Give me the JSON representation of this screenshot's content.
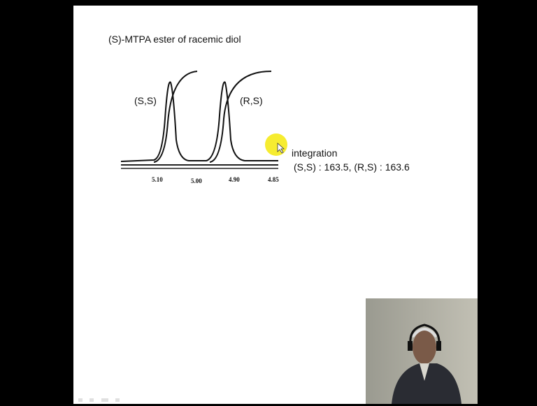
{
  "slide": {
    "title": "(S)-MTPA ester of racemic diol",
    "spectrum": {
      "peak_labels": [
        "(S,S)",
        "(R,S)"
      ],
      "axis_labels": [
        "5.10",
        "5.00",
        "4.90",
        "4.85"
      ]
    },
    "integration": {
      "heading": "integration",
      "values": "(S,S) : 163.5, (R,S) : 163.6"
    }
  }
}
